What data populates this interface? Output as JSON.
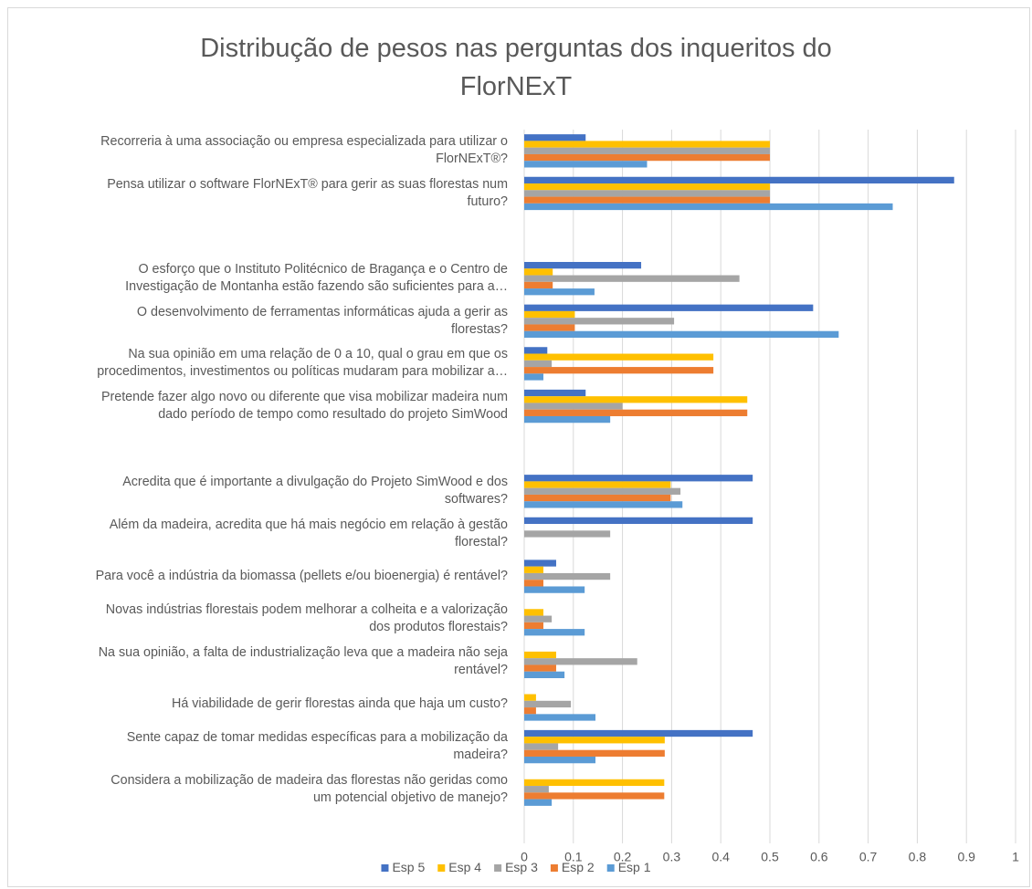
{
  "chart_data": {
    "type": "hbar",
    "title": "Distribução de pesos nas perguntas dos inqueritos do\nFlorNExT",
    "categories": [
      "Recorreria à uma associação ou empresa especializada para utilizar o\nFlorNExT®?",
      "Pensa utilizar o software FlorNExT® para gerir as suas florestas num\nfuturo?",
      null,
      "O esforço que o Instituto Politécnico de Bragança e o Centro de\nInvestigação de Montanha estão fazendo são suficientes para a…",
      "O desenvolvimento de ferramentas informáticas ajuda a gerir as\nflorestas?",
      "Na sua opinião em uma relação de 0 a 10, qual o grau em que os\nprocedimentos, investimentos ou políticas mudaram para mobilizar a…",
      "Pretende fazer algo novo ou diferente que visa mobilizar madeira num\ndado período de tempo como resultado do projeto SimWood",
      null,
      "Acredita que é importante a divulgação do Projeto SimWood e dos\nsoftwares?",
      "Além da madeira, acredita que há mais negócio em relação à gestão\nflorestal?",
      "Para você a indústria da biomassa (pellets e/ou bioenergia) é rentável?",
      "Novas indústrias florestais podem melhorar a colheita e a valorização\ndos produtos florestais?",
      "Na sua opinião, a falta de industrialização leva que a madeira não seja\nrentável?",
      "Há viabilidade de gerir florestas ainda que haja um custo?",
      "Sente capaz de tomar medidas específicas para a mobilização da\nmadeira?",
      "Considera a mobilização de madeira das florestas não geridas como\num potencial objetivo de manejo?"
    ],
    "series": [
      {
        "name": "Esp 5",
        "color": "#4472c4",
        "values": [
          0.125,
          0.875,
          null,
          0.238,
          0.588,
          0.047,
          0.125,
          null,
          0.465,
          0.465,
          0.065,
          0,
          0,
          0,
          0.465,
          0
        ]
      },
      {
        "name": "Esp 4",
        "color": "#ffc000",
        "values": [
          0.5,
          0.5,
          null,
          0.058,
          0.103,
          0.385,
          0.454,
          null,
          0.298,
          0,
          0.039,
          0.039,
          0.065,
          0.024,
          0.286,
          0.285
        ]
      },
      {
        "name": "Esp 3",
        "color": "#a5a5a5",
        "values": [
          0.5,
          0.5,
          null,
          0.438,
          0.305,
          0.056,
          0.2,
          null,
          0.318,
          0.175,
          0.175,
          0.056,
          0.23,
          0.095,
          0.069,
          0.05
        ]
      },
      {
        "name": "Esp 2",
        "color": "#ed7d31",
        "values": [
          0.5,
          0.5,
          null,
          0.058,
          0.103,
          0.385,
          0.454,
          null,
          0.298,
          0,
          0.039,
          0.039,
          0.065,
          0.024,
          0.286,
          0.285
        ]
      },
      {
        "name": "Esp 1",
        "color": "#5b9bd5",
        "values": [
          0.25,
          0.75,
          null,
          0.143,
          0.64,
          0.039,
          0.175,
          null,
          0.322,
          0,
          0.123,
          0.123,
          0.082,
          0.145,
          0.145,
          0.056
        ]
      }
    ],
    "xlim": [
      0,
      1
    ],
    "xticks": [
      0,
      0.1,
      0.2,
      0.3,
      0.4,
      0.5,
      0.6,
      0.7,
      0.8,
      0.9,
      1
    ],
    "grid": true,
    "legend": "bottom"
  }
}
